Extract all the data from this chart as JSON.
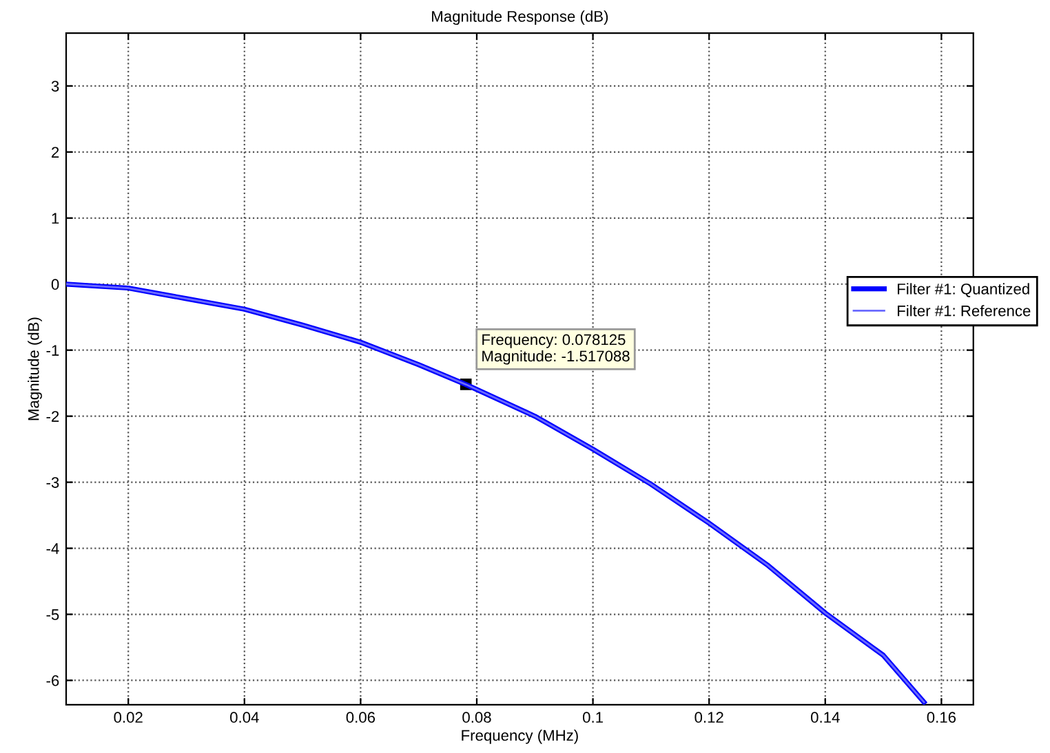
{
  "chart_data": {
    "type": "line",
    "title": "Magnitude Response (dB)",
    "xlabel": "Frequency (MHz)",
    "ylabel": "Magnitude (dB)",
    "x": [
      0.0093,
      0.02,
      0.03,
      0.04,
      0.05,
      0.06,
      0.07,
      0.078125,
      0.09,
      0.1,
      0.11,
      0.12,
      0.13,
      0.14,
      0.15,
      0.157
    ],
    "series": [
      {
        "name": "Filter #1: Quantized",
        "color": "#0000ff",
        "values": [
          0,
          -0.06,
          -0.22,
          -0.38,
          -0.62,
          -0.88,
          -1.22,
          -1.52,
          -2.0,
          -2.5,
          -3.03,
          -3.62,
          -4.25,
          -4.98,
          -5.62,
          -6.33
        ]
      },
      {
        "name": "Filter #1: Reference",
        "color": "#6a6aff",
        "values": [
          0,
          -0.06,
          -0.22,
          -0.38,
          -0.62,
          -0.88,
          -1.22,
          -1.52,
          -2.0,
          -2.5,
          -3.03,
          -3.62,
          -4.25,
          -4.98,
          -5.62,
          -6.33
        ]
      }
    ],
    "annotations": [
      {
        "text": "Frequency: 0.078125\nMagnitude: -1.517088",
        "x": 0.078125,
        "y": -1.517088
      }
    ],
    "xlim": [
      0.0093,
      0.1655
    ],
    "ylim": [
      -6.37,
      3.8
    ],
    "xticks": [
      0.02,
      0.04,
      0.06,
      0.08,
      0.1,
      0.12,
      0.14,
      0.16
    ],
    "yticks": [
      -6,
      -5,
      -4,
      -3,
      -2,
      -1,
      0,
      1,
      2,
      3
    ],
    "grid": true,
    "legend": "right",
    "line_style": "solid",
    "marker": "none"
  }
}
